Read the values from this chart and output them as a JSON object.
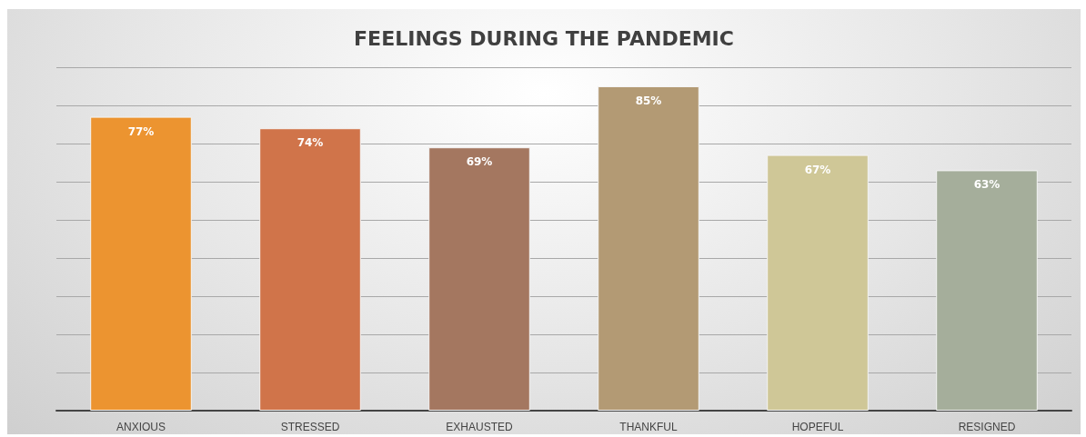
{
  "chart_data": {
    "type": "bar",
    "title": "FEELINGS DURING THE PANDEMIC",
    "categories": [
      "ANXIOUS",
      "STRESSED",
      "EXHAUSTED",
      "THANKFUL",
      "HOPEFUL",
      "RESIGNED"
    ],
    "values": [
      77,
      74,
      69,
      85,
      67,
      63
    ],
    "value_labels": [
      "77%",
      "74%",
      "69%",
      "85%",
      "67%",
      "63%"
    ],
    "colors": [
      "#ec9430",
      "#d0744a",
      "#a47760",
      "#b39a74",
      "#cfc797",
      "#a5ae9b"
    ],
    "ylim": [
      0,
      90
    ],
    "yticks": [
      {
        "value": 0,
        "label": null
      },
      {
        "value": 10,
        "label": null
      },
      {
        "value": 20,
        "label": null
      },
      {
        "value": 30,
        "label": null
      },
      {
        "value": 40,
        "label": null
      },
      {
        "value": 50,
        "label": null
      },
      {
        "value": 60,
        "label": null
      },
      {
        "value": 70,
        "label": null
      },
      {
        "value": 80,
        "label": null
      },
      {
        "value": 90,
        "label": null
      }
    ],
    "grid": "y",
    "tick_labels": "x"
  }
}
